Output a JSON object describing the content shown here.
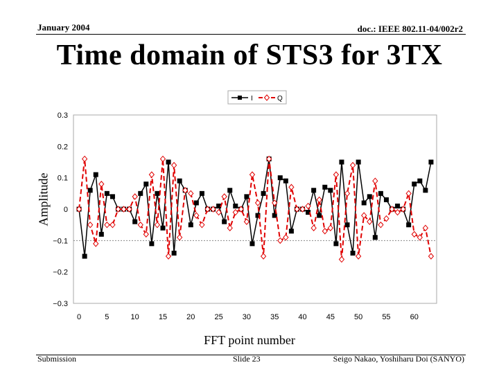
{
  "header": {
    "date": "January 2004",
    "doc_id": "doc.: IEEE 802.11-04/002r2"
  },
  "slide": {
    "title": "Time domain of STS3 for 3TX"
  },
  "footer": {
    "left": "Submission",
    "center": "Slide 23",
    "right": "Seigo Nakao, Yoshiharu Doi (SANYO)"
  },
  "colors": {
    "series_i": "#000000",
    "series_q": "#e00000",
    "grid": "#c8c8c8",
    "plot_border": "#aaaaaa"
  },
  "chart_data": {
    "type": "line",
    "title": "",
    "xlabel": "FFT point number",
    "ylabel": "Amplitude",
    "xlim": [
      -1,
      64
    ],
    "ylim": [
      -0.3,
      0.3
    ],
    "xticks": [
      "0",
      "5",
      "10",
      "15",
      "20",
      "25",
      "30",
      "35",
      "40",
      "45",
      "50",
      "55",
      "60"
    ],
    "yticks": [
      "0.3",
      "0.2",
      "0.1",
      "0",
      "−0.1",
      "−0.2",
      "−0.3"
    ],
    "ytick_values": [
      0.3,
      0.2,
      0.1,
      0,
      -0.1,
      -0.2,
      -0.3
    ],
    "grid": false,
    "reference_line": -0.1,
    "legend_position": "top-center",
    "x": [
      0,
      1,
      2,
      3,
      4,
      5,
      6,
      7,
      8,
      9,
      10,
      11,
      12,
      13,
      14,
      15,
      16,
      17,
      18,
      19,
      20,
      21,
      22,
      23,
      24,
      25,
      26,
      27,
      28,
      29,
      30,
      31,
      32,
      33,
      34,
      35,
      36,
      37,
      38,
      39,
      40,
      41,
      42,
      43,
      44,
      45,
      46,
      47,
      48,
      49,
      50,
      51,
      52,
      53,
      54,
      55,
      56,
      57,
      58,
      59,
      60,
      61,
      62,
      63
    ],
    "series": [
      {
        "name": "I",
        "marker": "square",
        "line": "solid",
        "values": [
          0.0,
          -0.15,
          0.06,
          0.11,
          -0.08,
          0.05,
          0.04,
          0.0,
          0.0,
          0.0,
          -0.04,
          0.05,
          0.08,
          -0.11,
          0.05,
          -0.06,
          0.15,
          -0.14,
          0.09,
          0.06,
          -0.05,
          0.02,
          0.05,
          0.0,
          0.0,
          0.01,
          -0.04,
          0.06,
          0.01,
          0.0,
          0.04,
          -0.11,
          -0.02,
          0.05,
          0.16,
          -0.02,
          0.1,
          0.09,
          -0.07,
          0.0,
          0.0,
          -0.01,
          0.06,
          -0.02,
          0.07,
          0.06,
          -0.11,
          0.15,
          -0.05,
          -0.14,
          0.15,
          0.02,
          0.04,
          -0.09,
          0.05,
          0.03,
          0.0,
          0.01,
          0.0,
          -0.05,
          0.08,
          0.09,
          0.06,
          0.15
        ]
      },
      {
        "name": "Q",
        "marker": "diamond-open",
        "line": "dashed",
        "values": [
          0.0,
          0.16,
          -0.05,
          -0.11,
          0.08,
          -0.05,
          -0.05,
          0.0,
          0.0,
          0.0,
          0.04,
          -0.05,
          -0.08,
          0.11,
          -0.05,
          0.16,
          -0.15,
          0.14,
          -0.09,
          0.06,
          0.05,
          -0.02,
          -0.05,
          0.0,
          0.0,
          -0.01,
          0.04,
          -0.06,
          -0.01,
          0.0,
          -0.04,
          0.11,
          0.02,
          -0.15,
          0.16,
          0.02,
          -0.1,
          -0.09,
          0.07,
          0.0,
          0.0,
          0.01,
          -0.06,
          0.03,
          -0.07,
          -0.06,
          0.11,
          -0.16,
          0.05,
          0.14,
          -0.15,
          -0.02,
          -0.04,
          0.09,
          -0.05,
          -0.03,
          0.0,
          -0.01,
          0.0,
          0.05,
          -0.08,
          -0.09,
          -0.06,
          -0.15
        ]
      }
    ]
  }
}
